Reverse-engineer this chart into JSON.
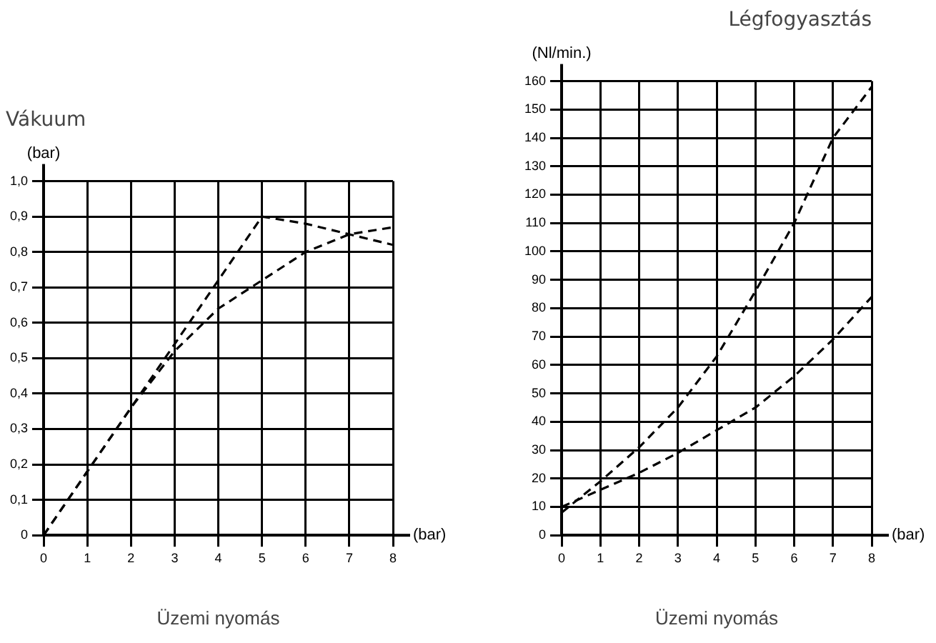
{
  "chart_data": [
    {
      "type": "line",
      "title": "Vákuum",
      "ylabel": "(bar)",
      "xlabel": "Üzemi nyomás",
      "annotations": [
        "(bar)"
      ],
      "x": [
        0,
        1,
        2,
        3,
        4,
        5,
        6,
        7,
        8
      ],
      "series": [
        {
          "color": "#000000",
          "values": [
            0,
            0.18,
            0.36,
            0.54,
            0.72,
            0.9,
            0.88,
            0.85,
            0.82
          ]
        },
        {
          "color": "#000000",
          "values": [
            0,
            0.18,
            0.36,
            0.52,
            0.64,
            0.72,
            0.8,
            0.85,
            0.87
          ]
        }
      ],
      "xlim": [
        0,
        8
      ],
      "xticks": [
        0,
        1,
        2,
        3,
        4,
        5,
        6,
        7,
        8
      ],
      "ylim": [
        0,
        1
      ],
      "yticks": [
        0,
        {
          "value": 0.1,
          "label": "0,1"
        },
        {
          "value": 0.2,
          "label": "0,2"
        },
        {
          "value": 0.3,
          "label": "0,3"
        },
        {
          "value": 0.4,
          "label": "0,4"
        },
        {
          "value": 0.5,
          "label": "0,5"
        },
        {
          "value": 0.6,
          "label": "0,6"
        },
        {
          "value": 0.7,
          "label": "0,7"
        },
        {
          "value": 0.8,
          "label": "0,8"
        },
        {
          "value": 0.9,
          "label": "0,9"
        },
        {
          "value": 1,
          "label": "1,0"
        }
      ],
      "grid": true,
      "legend": false,
      "line_style": "dashed",
      "marker": "none"
    },
    {
      "type": "line",
      "title": "Légfogyasztás",
      "ylabel": "(Nl/min.)",
      "xlabel": "Üzemi nyomás",
      "annotations": [
        "(bar)"
      ],
      "x": [
        0,
        1,
        2,
        3,
        4,
        5,
        6,
        7,
        8
      ],
      "series": [
        {
          "color": "#000000",
          "values": [
            8,
            19,
            31,
            45,
            63,
            86,
            110,
            140,
            158
          ]
        },
        {
          "color": "#000000",
          "values": [
            10,
            16,
            22,
            29,
            37,
            45,
            56,
            69,
            84
          ]
        }
      ],
      "xlim": [
        0,
        8
      ],
      "xticks": [
        0,
        1,
        2,
        3,
        4,
        5,
        6,
        7,
        8
      ],
      "ylim": [
        0,
        160
      ],
      "yticks": [
        0,
        10,
        20,
        30,
        40,
        50,
        60,
        70,
        80,
        90,
        100,
        110,
        120,
        130,
        140,
        150,
        160
      ],
      "grid": true,
      "legend": false,
      "line_style": "dashed",
      "marker": "none"
    }
  ]
}
